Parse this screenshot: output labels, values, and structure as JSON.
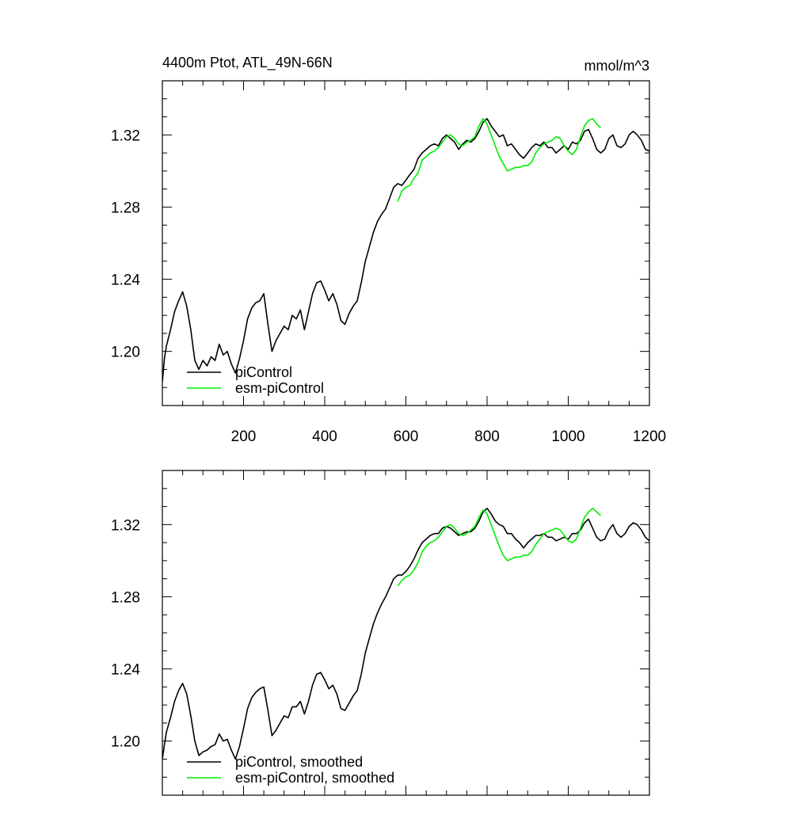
{
  "chart_data": [
    {
      "type": "line",
      "title": "4400m Ptot, ATL_49N-66N",
      "units": "mmol/m^3",
      "xlabel": "",
      "ylabel": "",
      "xlim": [
        0,
        1200
      ],
      "ylim": [
        1.17,
        1.35
      ],
      "xticks": [
        200,
        400,
        600,
        800,
        1000,
        1200
      ],
      "xtick_labels": [
        "200",
        "400",
        "600",
        "800",
        "1000",
        "1200"
      ],
      "yticks": [
        1.2,
        1.24,
        1.28,
        1.32
      ],
      "ytick_labels": [
        "1.20",
        "1.24",
        "1.28",
        "1.32"
      ],
      "legend_position": "bottom-left",
      "series": [
        {
          "name": "piControl",
          "color": "#000000",
          "x": [
            0,
            5,
            10,
            20,
            30,
            40,
            50,
            60,
            70,
            80,
            90,
            100,
            110,
            120,
            130,
            140,
            150,
            160,
            170,
            180,
            190,
            200,
            210,
            220,
            230,
            240,
            250,
            260,
            270,
            280,
            290,
            300,
            310,
            320,
            330,
            340,
            350,
            360,
            370,
            380,
            390,
            400,
            410,
            420,
            430,
            440,
            450,
            460,
            470,
            480,
            490,
            500,
            510,
            520,
            530,
            540,
            550,
            560,
            570,
            580,
            590,
            600,
            610,
            620,
            630,
            640,
            650,
            660,
            670,
            680,
            690,
            700,
            710,
            720,
            730,
            740,
            750,
            760,
            770,
            780,
            790,
            800,
            810,
            820,
            830,
            840,
            850,
            860,
            870,
            880,
            890,
            900,
            910,
            920,
            930,
            940,
            950,
            960,
            970,
            980,
            990,
            1000,
            1010,
            1020,
            1030,
            1040,
            1050,
            1060,
            1070,
            1080,
            1090,
            1100,
            1110,
            1120,
            1130,
            1140,
            1150,
            1160,
            1170,
            1180,
            1190,
            1200
          ],
          "values": [
            1.183,
            1.196,
            1.203,
            1.212,
            1.222,
            1.228,
            1.233,
            1.225,
            1.212,
            1.195,
            1.19,
            1.195,
            1.192,
            1.197,
            1.195,
            1.204,
            1.198,
            1.2,
            1.193,
            1.188,
            1.196,
            1.206,
            1.218,
            1.224,
            1.227,
            1.228,
            1.232,
            1.215,
            1.2,
            1.206,
            1.21,
            1.214,
            1.212,
            1.22,
            1.218,
            1.223,
            1.212,
            1.222,
            1.232,
            1.238,
            1.239,
            1.234,
            1.228,
            1.232,
            1.226,
            1.217,
            1.215,
            1.221,
            1.225,
            1.228,
            1.238,
            1.25,
            1.258,
            1.266,
            1.272,
            1.276,
            1.279,
            1.285,
            1.291,
            1.293,
            1.292,
            1.295,
            1.298,
            1.301,
            1.307,
            1.31,
            1.312,
            1.314,
            1.315,
            1.314,
            1.318,
            1.32,
            1.318,
            1.316,
            1.312,
            1.315,
            1.317,
            1.316,
            1.318,
            1.322,
            1.327,
            1.329,
            1.325,
            1.322,
            1.319,
            1.32,
            1.314,
            1.315,
            1.312,
            1.309,
            1.307,
            1.31,
            1.313,
            1.315,
            1.314,
            1.316,
            1.313,
            1.313,
            1.31,
            1.312,
            1.314,
            1.312,
            1.316,
            1.315,
            1.317,
            1.322,
            1.323,
            1.318,
            1.312,
            1.31,
            1.312,
            1.318,
            1.32,
            1.314,
            1.313,
            1.315,
            1.32,
            1.322,
            1.32,
            1.317,
            1.312,
            1.311
          ]
        },
        {
          "name": "esm-piControl",
          "color": "#00ee00",
          "x": [
            580,
            590,
            600,
            610,
            620,
            630,
            640,
            650,
            660,
            670,
            680,
            690,
            700,
            710,
            720,
            730,
            740,
            750,
            760,
            770,
            780,
            790,
            800,
            810,
            820,
            830,
            840,
            850,
            860,
            870,
            880,
            890,
            900,
            910,
            920,
            930,
            940,
            950,
            960,
            970,
            980,
            990,
            1000,
            1010,
            1020,
            1030,
            1040,
            1050,
            1060,
            1070,
            1080
          ],
          "values": [
            1.283,
            1.289,
            1.291,
            1.292,
            1.296,
            1.299,
            1.306,
            1.308,
            1.31,
            1.311,
            1.313,
            1.316,
            1.319,
            1.32,
            1.318,
            1.315,
            1.314,
            1.316,
            1.317,
            1.319,
            1.325,
            1.329,
            1.326,
            1.32,
            1.314,
            1.308,
            1.304,
            1.3,
            1.301,
            1.302,
            1.302,
            1.303,
            1.303,
            1.305,
            1.31,
            1.313,
            1.315,
            1.316,
            1.317,
            1.319,
            1.318,
            1.314,
            1.311,
            1.309,
            1.312,
            1.319,
            1.325,
            1.328,
            1.329,
            1.326,
            1.324
          ]
        }
      ]
    },
    {
      "type": "line",
      "title": "",
      "xlabel": "",
      "ylabel": "",
      "xlim": [
        0,
        1200
      ],
      "ylim": [
        1.17,
        1.35
      ],
      "xticks": [
        200,
        400,
        600,
        800,
        1000,
        1200
      ],
      "xtick_labels": [],
      "yticks": [
        1.2,
        1.24,
        1.28,
        1.32
      ],
      "ytick_labels": [
        "1.20",
        "1.24",
        "1.28",
        "1.32"
      ],
      "legend_position": "bottom-left",
      "series": [
        {
          "name": "piControl, smoothed",
          "color": "#000000",
          "x": [
            0,
            5,
            10,
            20,
            30,
            40,
            50,
            60,
            70,
            80,
            90,
            100,
            110,
            120,
            130,
            140,
            150,
            160,
            170,
            180,
            190,
            200,
            210,
            220,
            230,
            240,
            250,
            260,
            270,
            280,
            290,
            300,
            310,
            320,
            330,
            340,
            350,
            360,
            370,
            380,
            390,
            400,
            410,
            420,
            430,
            440,
            450,
            460,
            470,
            480,
            490,
            500,
            510,
            520,
            530,
            540,
            550,
            560,
            570,
            580,
            590,
            600,
            610,
            620,
            630,
            640,
            650,
            660,
            670,
            680,
            690,
            700,
            710,
            720,
            730,
            740,
            750,
            760,
            770,
            780,
            790,
            800,
            810,
            820,
            830,
            840,
            850,
            860,
            870,
            880,
            890,
            900,
            910,
            920,
            930,
            940,
            950,
            960,
            970,
            980,
            990,
            1000,
            1010,
            1020,
            1030,
            1040,
            1050,
            1060,
            1070,
            1080,
            1090,
            1100,
            1110,
            1120,
            1130,
            1140,
            1150,
            1160,
            1170,
            1180,
            1190,
            1200
          ],
          "values": [
            1.19,
            1.198,
            1.205,
            1.213,
            1.222,
            1.228,
            1.232,
            1.226,
            1.214,
            1.2,
            1.192,
            1.194,
            1.195,
            1.197,
            1.198,
            1.204,
            1.2,
            1.201,
            1.195,
            1.19,
            1.197,
            1.207,
            1.218,
            1.224,
            1.227,
            1.229,
            1.23,
            1.217,
            1.203,
            1.206,
            1.21,
            1.214,
            1.213,
            1.219,
            1.219,
            1.222,
            1.215,
            1.222,
            1.231,
            1.237,
            1.238,
            1.234,
            1.229,
            1.231,
            1.226,
            1.218,
            1.217,
            1.221,
            1.225,
            1.228,
            1.237,
            1.249,
            1.257,
            1.265,
            1.271,
            1.276,
            1.28,
            1.285,
            1.29,
            1.292,
            1.292,
            1.294,
            1.297,
            1.301,
            1.306,
            1.31,
            1.312,
            1.314,
            1.315,
            1.315,
            1.318,
            1.319,
            1.318,
            1.316,
            1.314,
            1.315,
            1.316,
            1.316,
            1.318,
            1.322,
            1.327,
            1.329,
            1.326,
            1.322,
            1.32,
            1.319,
            1.315,
            1.315,
            1.312,
            1.31,
            1.307,
            1.31,
            1.312,
            1.314,
            1.314,
            1.315,
            1.313,
            1.313,
            1.311,
            1.312,
            1.313,
            1.312,
            1.315,
            1.315,
            1.317,
            1.321,
            1.323,
            1.318,
            1.313,
            1.311,
            1.312,
            1.317,
            1.32,
            1.315,
            1.313,
            1.315,
            1.319,
            1.321,
            1.32,
            1.317,
            1.313,
            1.311
          ]
        },
        {
          "name": "esm-piControl, smoothed",
          "color": "#00ee00",
          "x": [
            580,
            590,
            600,
            610,
            620,
            630,
            640,
            650,
            660,
            670,
            680,
            690,
            700,
            710,
            720,
            730,
            740,
            750,
            760,
            770,
            780,
            790,
            800,
            810,
            820,
            830,
            840,
            850,
            860,
            870,
            880,
            890,
            900,
            910,
            920,
            930,
            940,
            950,
            960,
            970,
            980,
            990,
            1000,
            1010,
            1020,
            1030,
            1040,
            1050,
            1060,
            1070,
            1080
          ],
          "values": [
            1.286,
            1.289,
            1.291,
            1.292,
            1.295,
            1.299,
            1.305,
            1.308,
            1.31,
            1.311,
            1.313,
            1.316,
            1.319,
            1.32,
            1.318,
            1.315,
            1.314,
            1.315,
            1.317,
            1.319,
            1.324,
            1.328,
            1.326,
            1.32,
            1.314,
            1.308,
            1.303,
            1.3,
            1.301,
            1.302,
            1.302,
            1.303,
            1.303,
            1.305,
            1.309,
            1.312,
            1.315,
            1.316,
            1.317,
            1.318,
            1.317,
            1.314,
            1.311,
            1.31,
            1.312,
            1.318,
            1.324,
            1.327,
            1.329,
            1.327,
            1.325
          ]
        }
      ]
    }
  ]
}
